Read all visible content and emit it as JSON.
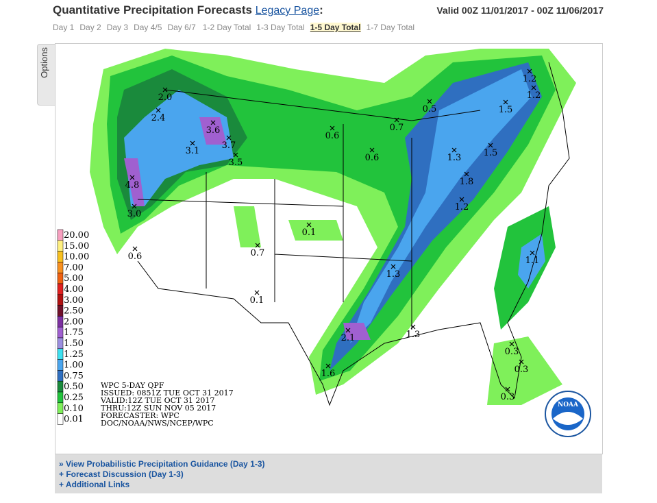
{
  "header": {
    "title": "Quantitative Precipitation Forecasts",
    "legacy_link": "Legacy Page",
    "colon": ":",
    "valid": "Valid 00Z 11/01/2017 - 00Z 11/06/2017"
  },
  "tabs": [
    "Day 1",
    "Day 2",
    "Day 3",
    "Day 4/5",
    "Day 6/7",
    "1-2 Day Total",
    "1-3 Day Total",
    "1-5 Day Total",
    "1-7 Day Total"
  ],
  "options": "Options",
  "map": {
    "legend": [
      {
        "label": "20.00",
        "color": "#f8a0c0"
      },
      {
        "label": "15.00",
        "color": "#fff080"
      },
      {
        "label": "10.00",
        "color": "#f8c020"
      },
      {
        "label": "7.00",
        "color": "#f89020"
      },
      {
        "label": "5.00",
        "color": "#f06010"
      },
      {
        "label": "4.00",
        "color": "#e02020"
      },
      {
        "label": "3.00",
        "color": "#b01010"
      },
      {
        "label": "2.50",
        "color": "#70102a"
      },
      {
        "label": "2.00",
        "color": "#7c30a0"
      },
      {
        "label": "1.75",
        "color": "#a060d0"
      },
      {
        "label": "1.50",
        "color": "#9c8fe0"
      },
      {
        "label": "1.25",
        "color": "#3ee0f0"
      },
      {
        "label": "1.00",
        "color": "#4aa5ee"
      },
      {
        "label": "0.75",
        "color": "#2f6fc0"
      },
      {
        "label": "0.50",
        "color": "#1a8a3c"
      },
      {
        "label": "0.25",
        "color": "#22c33c"
      },
      {
        "label": "0.10",
        "color": "#7ff05a"
      },
      {
        "label": "0.01",
        "color": "#ffffff"
      }
    ],
    "info": [
      "WPC 5-DAY QPF",
      "ISSUED: 0851Z TUE OCT 31 2017",
      "VALID:12Z TUE OCT 31 2017",
      "THRU:12Z SUN NOV 05 2017",
      "FORECASTER: WPC",
      "DOC/NOAA/NWS/NCEP/WPC"
    ],
    "points": [
      "2.0",
      "2.4",
      "3.6",
      "3.7",
      "3.1",
      "3.5",
      "4.8",
      "3.0",
      "0.6",
      "0.7",
      "0.1",
      "0.1",
      "0.6",
      "0.7",
      "0.5",
      "1.2",
      "1.2",
      "1.5",
      "0.6",
      "1.3",
      "1.5",
      "1.8",
      "1.2",
      "1.3",
      "1.1",
      "2.1",
      "1.3",
      "1.6",
      "0.3",
      "0.3",
      "0.3"
    ],
    "logo": "NOAA"
  },
  "links": [
    "» View Probabilistic Precipitation Guidance (Day 1-3)",
    "+ Forecast Discussion (Day 1-3)",
    "+ Additional Links"
  ]
}
